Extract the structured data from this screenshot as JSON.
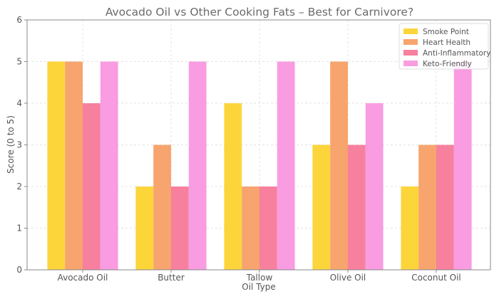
{
  "chart_data": {
    "type": "bar",
    "title": "Avocado Oil vs Other Cooking Fats – Best for Carnivore?",
    "xlabel": "Oil Type",
    "ylabel": "Score (0 to 5)",
    "ylim": [
      0,
      6
    ],
    "yticks": [
      "0",
      "1",
      "2",
      "3",
      "4",
      "5",
      "6"
    ],
    "grid": true,
    "legend_position": "top-right",
    "categories": [
      "Avocado Oil",
      "Butter",
      "Tallow",
      "Olive Oil",
      "Coconut Oil"
    ],
    "series": [
      {
        "name": "Smoke Point",
        "color": "#FCD53B",
        "values": [
          5,
          2,
          4,
          3,
          2
        ]
      },
      {
        "name": "Heart Health",
        "color": "#F7A46E",
        "values": [
          5,
          3,
          2,
          5,
          3
        ]
      },
      {
        "name": "Anti-Inflammatory",
        "color": "#F7809F",
        "values": [
          4,
          2,
          2,
          3,
          3
        ]
      },
      {
        "name": "Keto-Friendly",
        "color": "#F99CE1",
        "values": [
          5,
          5,
          5,
          4,
          5
        ]
      }
    ]
  }
}
